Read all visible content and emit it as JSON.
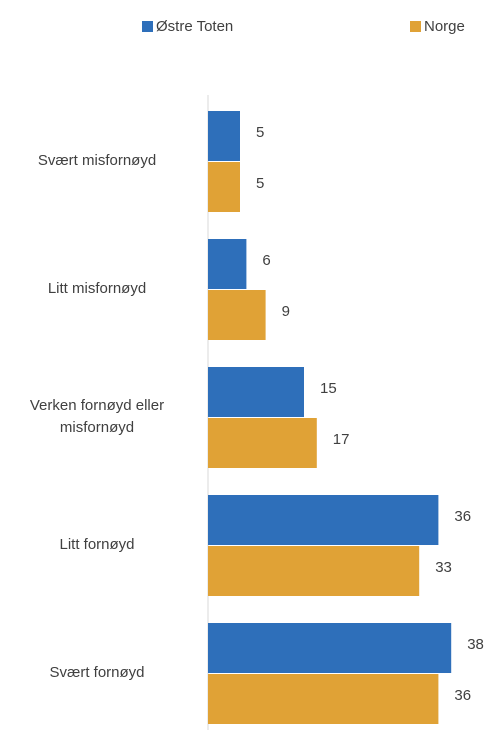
{
  "chart_data": {
    "type": "bar",
    "orientation": "horizontal",
    "categories": [
      "Svært misfornøyd",
      "Litt misfornøyd",
      "Verken fornøyd eller misfornøyd",
      "Litt fornøyd",
      "Svært fornøyd"
    ],
    "series": [
      {
        "name": "Østre Toten",
        "color": "#2e6fba",
        "values": [
          5,
          6,
          15,
          36,
          38
        ]
      },
      {
        "name": "Norge",
        "color": "#e0a236",
        "values": [
          5,
          9,
          17,
          33,
          36
        ]
      }
    ],
    "xlim": [
      0,
      44
    ],
    "legend": "top"
  }
}
